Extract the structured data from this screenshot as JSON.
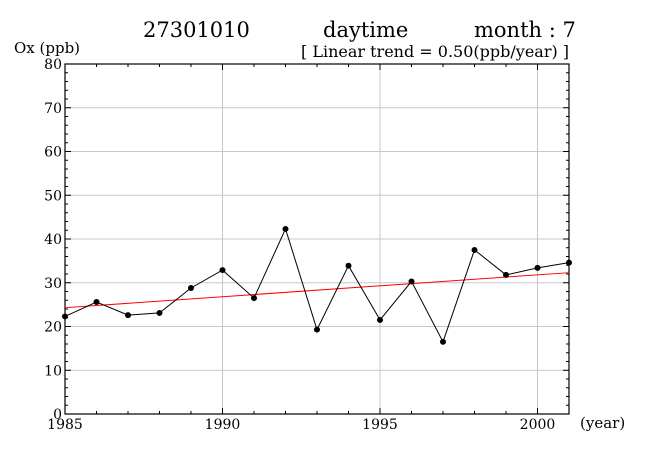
{
  "header": {
    "station": "27301010",
    "period": "daytime",
    "month": "month : 7",
    "trend": "[ Linear trend = 0.50(ppb/year) ]"
  },
  "chart_data": {
    "type": "line",
    "ylabel": "Ox (ppb)",
    "xlabel": "(year)",
    "xlim": [
      1985,
      2001
    ],
    "ylim": [
      0,
      80
    ],
    "grid": true,
    "x_major_ticks": [
      1985,
      1990,
      1995,
      2000
    ],
    "y_major_ticks": [
      0,
      10,
      20,
      30,
      40,
      50,
      60,
      70,
      80
    ],
    "x": [
      1985,
      1986,
      1987,
      1988,
      1989,
      1990,
      1991,
      1992,
      1993,
      1994,
      1995,
      1996,
      1997,
      1998,
      1999,
      2000,
      2001
    ],
    "series": [
      {
        "values": [
          22.3,
          25.6,
          22.6,
          23.1,
          28.8,
          32.9,
          26.5,
          42.3,
          19.3,
          33.9,
          21.5,
          30.3,
          16.5,
          37.5,
          31.8,
          33.4,
          34.6
        ],
        "color": "#000000"
      }
    ],
    "trend_line": {
      "x": [
        1985,
        2001
      ],
      "y": [
        24.3,
        32.3
      ],
      "color": "#ff0000"
    }
  }
}
